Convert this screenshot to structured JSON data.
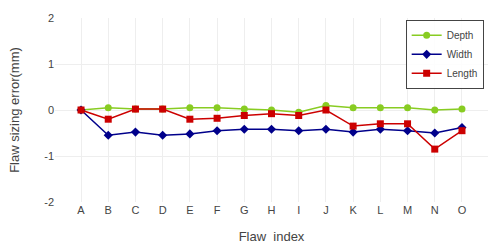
{
  "chart_data": {
    "type": "line",
    "xlabel": "Flaw  index",
    "ylabel": "Flaw sizing error(mm)",
    "categories": [
      "A",
      "B",
      "C",
      "D",
      "E",
      "F",
      "G",
      "H",
      "I",
      "J",
      "K",
      "L",
      "M",
      "N",
      "O"
    ],
    "series": [
      {
        "name": "Depth",
        "color": "#88cc22",
        "marker": "circle",
        "values": [
          0.0,
          0.05,
          0.02,
          0.02,
          0.05,
          0.05,
          0.02,
          0.0,
          -0.05,
          0.1,
          0.05,
          0.05,
          0.05,
          0.0,
          0.02
        ]
      },
      {
        "name": "Width",
        "color": "#00008B",
        "marker": "diamond",
        "values": [
          0.0,
          -0.55,
          -0.48,
          -0.55,
          -0.52,
          -0.45,
          -0.42,
          -0.42,
          -0.45,
          -0.42,
          -0.48,
          -0.42,
          -0.45,
          -0.5,
          -0.38
        ]
      },
      {
        "name": "Length",
        "color": "#cc0000",
        "marker": "square",
        "values": [
          0.0,
          -0.2,
          0.02,
          0.02,
          -0.2,
          -0.18,
          -0.12,
          -0.08,
          -0.12,
          0.0,
          -0.35,
          -0.3,
          -0.3,
          -0.85,
          -0.45
        ]
      }
    ],
    "ylim": [
      -2,
      2
    ],
    "yticks": [
      -2,
      -1,
      0,
      1,
      2
    ],
    "grid": true,
    "legend": "upper right"
  }
}
